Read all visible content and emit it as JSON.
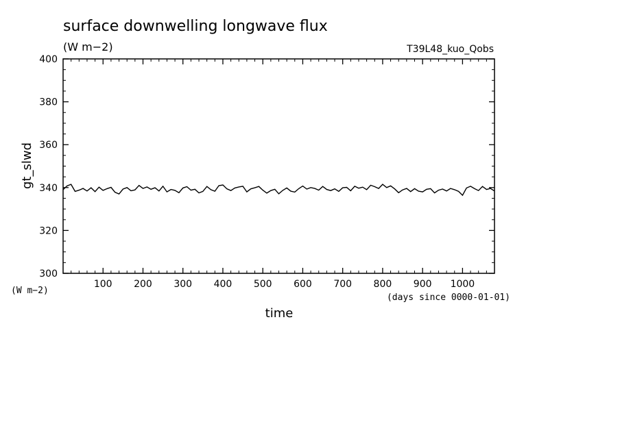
{
  "chart_data": {
    "type": "line",
    "title": "surface downwelling longwave flux",
    "units_label": "(W m−2)",
    "run_label": "T39L48_kuo_Qobs",
    "ylabel": "gt_slwd",
    "yunits_label": "(W m−2)",
    "xlabel": "time",
    "xunits_label": "(days since 0000-01-01)",
    "xlim": [
      0,
      1080
    ],
    "ylim": [
      300,
      400
    ],
    "xticks": [
      100,
      200,
      300,
      400,
      500,
      600,
      700,
      800,
      900,
      1000
    ],
    "xtick_labels": [
      "100",
      "200",
      "300",
      "400",
      "500",
      "600",
      "700",
      "800",
      "900",
      "1000"
    ],
    "yticks": [
      300,
      320,
      340,
      360,
      380,
      400
    ],
    "ytick_labels": [
      "300",
      "320",
      "340",
      "360",
      "380",
      "400"
    ],
    "series": [
      {
        "color": "#000000",
        "x": [
          0,
          10,
          20,
          30,
          40,
          50,
          60,
          70,
          80,
          90,
          100,
          110,
          120,
          130,
          140,
          150,
          160,
          170,
          180,
          190,
          200,
          210,
          220,
          230,
          240,
          250,
          260,
          270,
          280,
          290,
          300,
          310,
          320,
          330,
          340,
          350,
          360,
          370,
          380,
          390,
          400,
          410,
          420,
          430,
          440,
          450,
          460,
          470,
          480,
          490,
          500,
          510,
          520,
          530,
          540,
          550,
          560,
          570,
          580,
          590,
          600,
          610,
          620,
          630,
          640,
          650,
          660,
          670,
          680,
          690,
          700,
          710,
          720,
          730,
          740,
          750,
          760,
          770,
          780,
          790,
          800,
          810,
          820,
          830,
          840,
          850,
          860,
          870,
          880,
          890,
          900,
          910,
          920,
          930,
          940,
          950,
          960,
          970,
          980,
          990,
          1000,
          1010,
          1020,
          1030,
          1040,
          1050,
          1060,
          1070,
          1080
        ],
        "y": [
          339.0,
          340.8,
          341.5,
          338.2,
          338.8,
          339.6,
          338.4,
          339.9,
          338.1,
          340.2,
          338.7,
          339.5,
          340.1,
          337.8,
          337.0,
          339.3,
          340.0,
          338.5,
          338.9,
          341.0,
          339.6,
          340.3,
          339.2,
          339.9,
          338.4,
          340.6,
          338.0,
          339.1,
          338.7,
          337.6,
          339.8,
          340.4,
          338.8,
          339.2,
          337.5,
          338.2,
          340.5,
          339.0,
          338.3,
          340.9,
          341.2,
          339.4,
          338.6,
          339.8,
          340.3,
          340.6,
          338.0,
          339.4,
          339.9,
          340.5,
          338.8,
          337.4,
          338.6,
          339.2,
          337.1,
          338.7,
          339.8,
          338.3,
          337.9,
          339.5,
          340.7,
          339.3,
          340.0,
          339.6,
          338.8,
          340.5,
          339.1,
          338.6,
          339.4,
          338.2,
          339.9,
          340.1,
          338.5,
          340.6,
          339.7,
          340.2,
          339.0,
          341.1,
          340.4,
          339.6,
          341.5,
          340.0,
          340.8,
          339.4,
          337.6,
          338.9,
          339.6,
          338.1,
          339.5,
          338.3,
          338.0,
          339.2,
          339.5,
          337.5,
          338.8,
          339.3,
          338.4,
          339.6,
          339.0,
          338.2,
          336.4,
          339.8,
          340.6,
          339.5,
          338.6,
          340.5,
          339.1,
          339.6,
          338.4
        ]
      }
    ]
  }
}
